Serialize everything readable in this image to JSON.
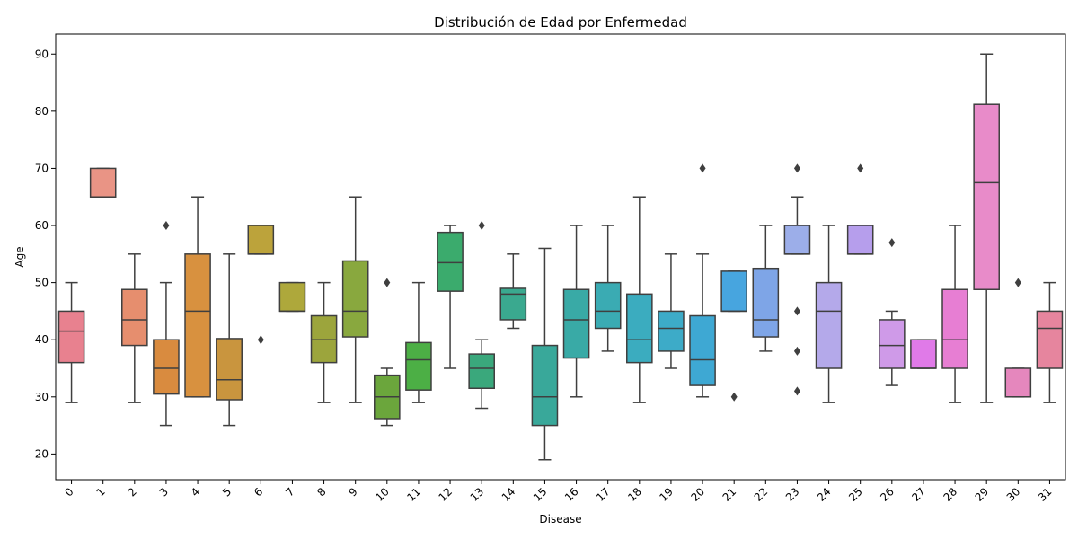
{
  "chart_data": {
    "type": "box",
    "title": "Distribución de Edad por Enfermedad",
    "xlabel": "Disease",
    "ylabel": "Age",
    "ylim": [
      15.5,
      93.5
    ],
    "yticks": [
      20,
      30,
      40,
      50,
      60,
      70,
      80,
      90
    ],
    "grid": false,
    "legend": "none",
    "categories": [
      "0",
      "1",
      "2",
      "3",
      "4",
      "5",
      "6",
      "7",
      "8",
      "9",
      "10",
      "11",
      "12",
      "13",
      "14",
      "15",
      "16",
      "17",
      "18",
      "19",
      "20",
      "21",
      "22",
      "23",
      "24",
      "25",
      "26",
      "27",
      "28",
      "29",
      "30",
      "31"
    ],
    "boxes": [
      {
        "whislo": 29,
        "q1": 36,
        "med": 41.5,
        "q3": 45,
        "whishi": 50,
        "fliers": [],
        "color": "#e8818f"
      },
      {
        "whislo": 65,
        "q1": 65,
        "med": 65,
        "q3": 70,
        "whishi": 70,
        "fliers": [],
        "color": "#e99485"
      },
      {
        "whislo": 29,
        "q1": 39,
        "med": 43.5,
        "q3": 48.8,
        "whishi": 55,
        "fliers": [],
        "color": "#e68e6e"
      },
      {
        "whislo": 25,
        "q1": 30.5,
        "med": 35,
        "q3": 40,
        "whishi": 50,
        "fliers": [
          60
        ],
        "color": "#d98b3f"
      },
      {
        "whislo": 30,
        "q1": 30,
        "med": 45,
        "q3": 55,
        "whishi": 65,
        "fliers": [],
        "color": "#d8913f"
      },
      {
        "whislo": 25,
        "q1": 29.5,
        "med": 33,
        "q3": 40.2,
        "whishi": 55,
        "fliers": [],
        "color": "#c9953e"
      },
      {
        "whislo": 55,
        "q1": 55,
        "med": 55,
        "q3": 60,
        "whishi": 60,
        "fliers": [
          40
        ],
        "color": "#bca33b"
      },
      {
        "whislo": 45,
        "q1": 45,
        "med": 45,
        "q3": 50,
        "whishi": 50,
        "fliers": [],
        "color": "#aea83b"
      },
      {
        "whislo": 29,
        "q1": 36,
        "med": 40,
        "q3": 44.2,
        "whishi": 50,
        "fliers": [],
        "color": "#9ca53c"
      },
      {
        "whislo": 29,
        "q1": 40.5,
        "med": 45,
        "q3": 53.8,
        "whishi": 65,
        "fliers": [],
        "color": "#89a83e"
      },
      {
        "whislo": 25,
        "q1": 26.2,
        "med": 30,
        "q3": 33.8,
        "whishi": 35,
        "fliers": [
          50
        ],
        "color": "#6ba63c"
      },
      {
        "whislo": 29,
        "q1": 31.2,
        "med": 36.5,
        "q3": 39.5,
        "whishi": 50,
        "fliers": [],
        "color": "#4caf45"
      },
      {
        "whislo": 35,
        "q1": 48.5,
        "med": 53.5,
        "q3": 58.8,
        "whishi": 60,
        "fliers": [],
        "color": "#3bab6d"
      },
      {
        "whislo": 28,
        "q1": 31.5,
        "med": 35,
        "q3": 37.5,
        "whishi": 40,
        "fliers": [
          60
        ],
        "color": "#3aa87c"
      },
      {
        "whislo": 42,
        "q1": 43.5,
        "med": 48,
        "q3": 49,
        "whishi": 55,
        "fliers": [],
        "color": "#3aa98f"
      },
      {
        "whislo": 19,
        "q1": 25,
        "med": 30,
        "q3": 39,
        "whishi": 56,
        "fliers": [],
        "color": "#39a89a"
      },
      {
        "whislo": 30,
        "q1": 36.8,
        "med": 43.5,
        "q3": 48.8,
        "whishi": 60,
        "fliers": [],
        "color": "#39aaa6"
      },
      {
        "whislo": 38,
        "q1": 42,
        "med": 45,
        "q3": 50,
        "whishi": 60,
        "fliers": [],
        "color": "#3aabb3"
      },
      {
        "whislo": 29,
        "q1": 36,
        "med": 40,
        "q3": 48,
        "whishi": 65,
        "fliers": [],
        "color": "#3bacbf"
      },
      {
        "whislo": 35,
        "q1": 38,
        "med": 42,
        "q3": 45,
        "whishi": 55,
        "fliers": [],
        "color": "#3dabc8"
      },
      {
        "whislo": 30,
        "q1": 32,
        "med": 36.5,
        "q3": 44.2,
        "whishi": 55,
        "fliers": [
          70
        ],
        "color": "#3ea8d3"
      },
      {
        "whislo": 45,
        "q1": 45,
        "med": 45,
        "q3": 52,
        "whishi": 52,
        "fliers": [
          30
        ],
        "color": "#47a5df"
      },
      {
        "whislo": 38,
        "q1": 40.5,
        "med": 43.5,
        "q3": 52.5,
        "whishi": 60,
        "fliers": [],
        "color": "#7ea5e7"
      },
      {
        "whislo": 55,
        "q1": 55,
        "med": 55,
        "q3": 60,
        "whishi": 65,
        "fliers": [
          70,
          45,
          38,
          31
        ],
        "color": "#9caee9"
      },
      {
        "whislo": 29,
        "q1": 35,
        "med": 45,
        "q3": 50,
        "whishi": 60,
        "fliers": [],
        "color": "#b4a9ea"
      },
      {
        "whislo": 55,
        "q1": 55,
        "med": 55,
        "q3": 60,
        "whishi": 60,
        "fliers": [
          70
        ],
        "color": "#b69eec"
      },
      {
        "whislo": 32,
        "q1": 35,
        "med": 39,
        "q3": 43.5,
        "whishi": 45,
        "fliers": [
          57
        ],
        "color": "#cf9ae8"
      },
      {
        "whislo": 35,
        "q1": 35,
        "med": 35,
        "q3": 40,
        "whishi": 40,
        "fliers": [],
        "color": "#e07ae8"
      },
      {
        "whislo": 29,
        "q1": 35,
        "med": 40,
        "q3": 48.8,
        "whishi": 60,
        "fliers": [],
        "color": "#e77ed3"
      },
      {
        "whislo": 29,
        "q1": 48.8,
        "med": 67.5,
        "q3": 81.2,
        "whishi": 90,
        "fliers": [],
        "color": "#e88bc9"
      },
      {
        "whislo": 30,
        "q1": 30,
        "med": 30,
        "q3": 35,
        "whishi": 35,
        "fliers": [
          50
        ],
        "color": "#e587bd"
      },
      {
        "whislo": 29,
        "q1": 35,
        "med": 42,
        "q3": 45,
        "whishi": 50,
        "fliers": [],
        "color": "#e6859e"
      }
    ]
  }
}
